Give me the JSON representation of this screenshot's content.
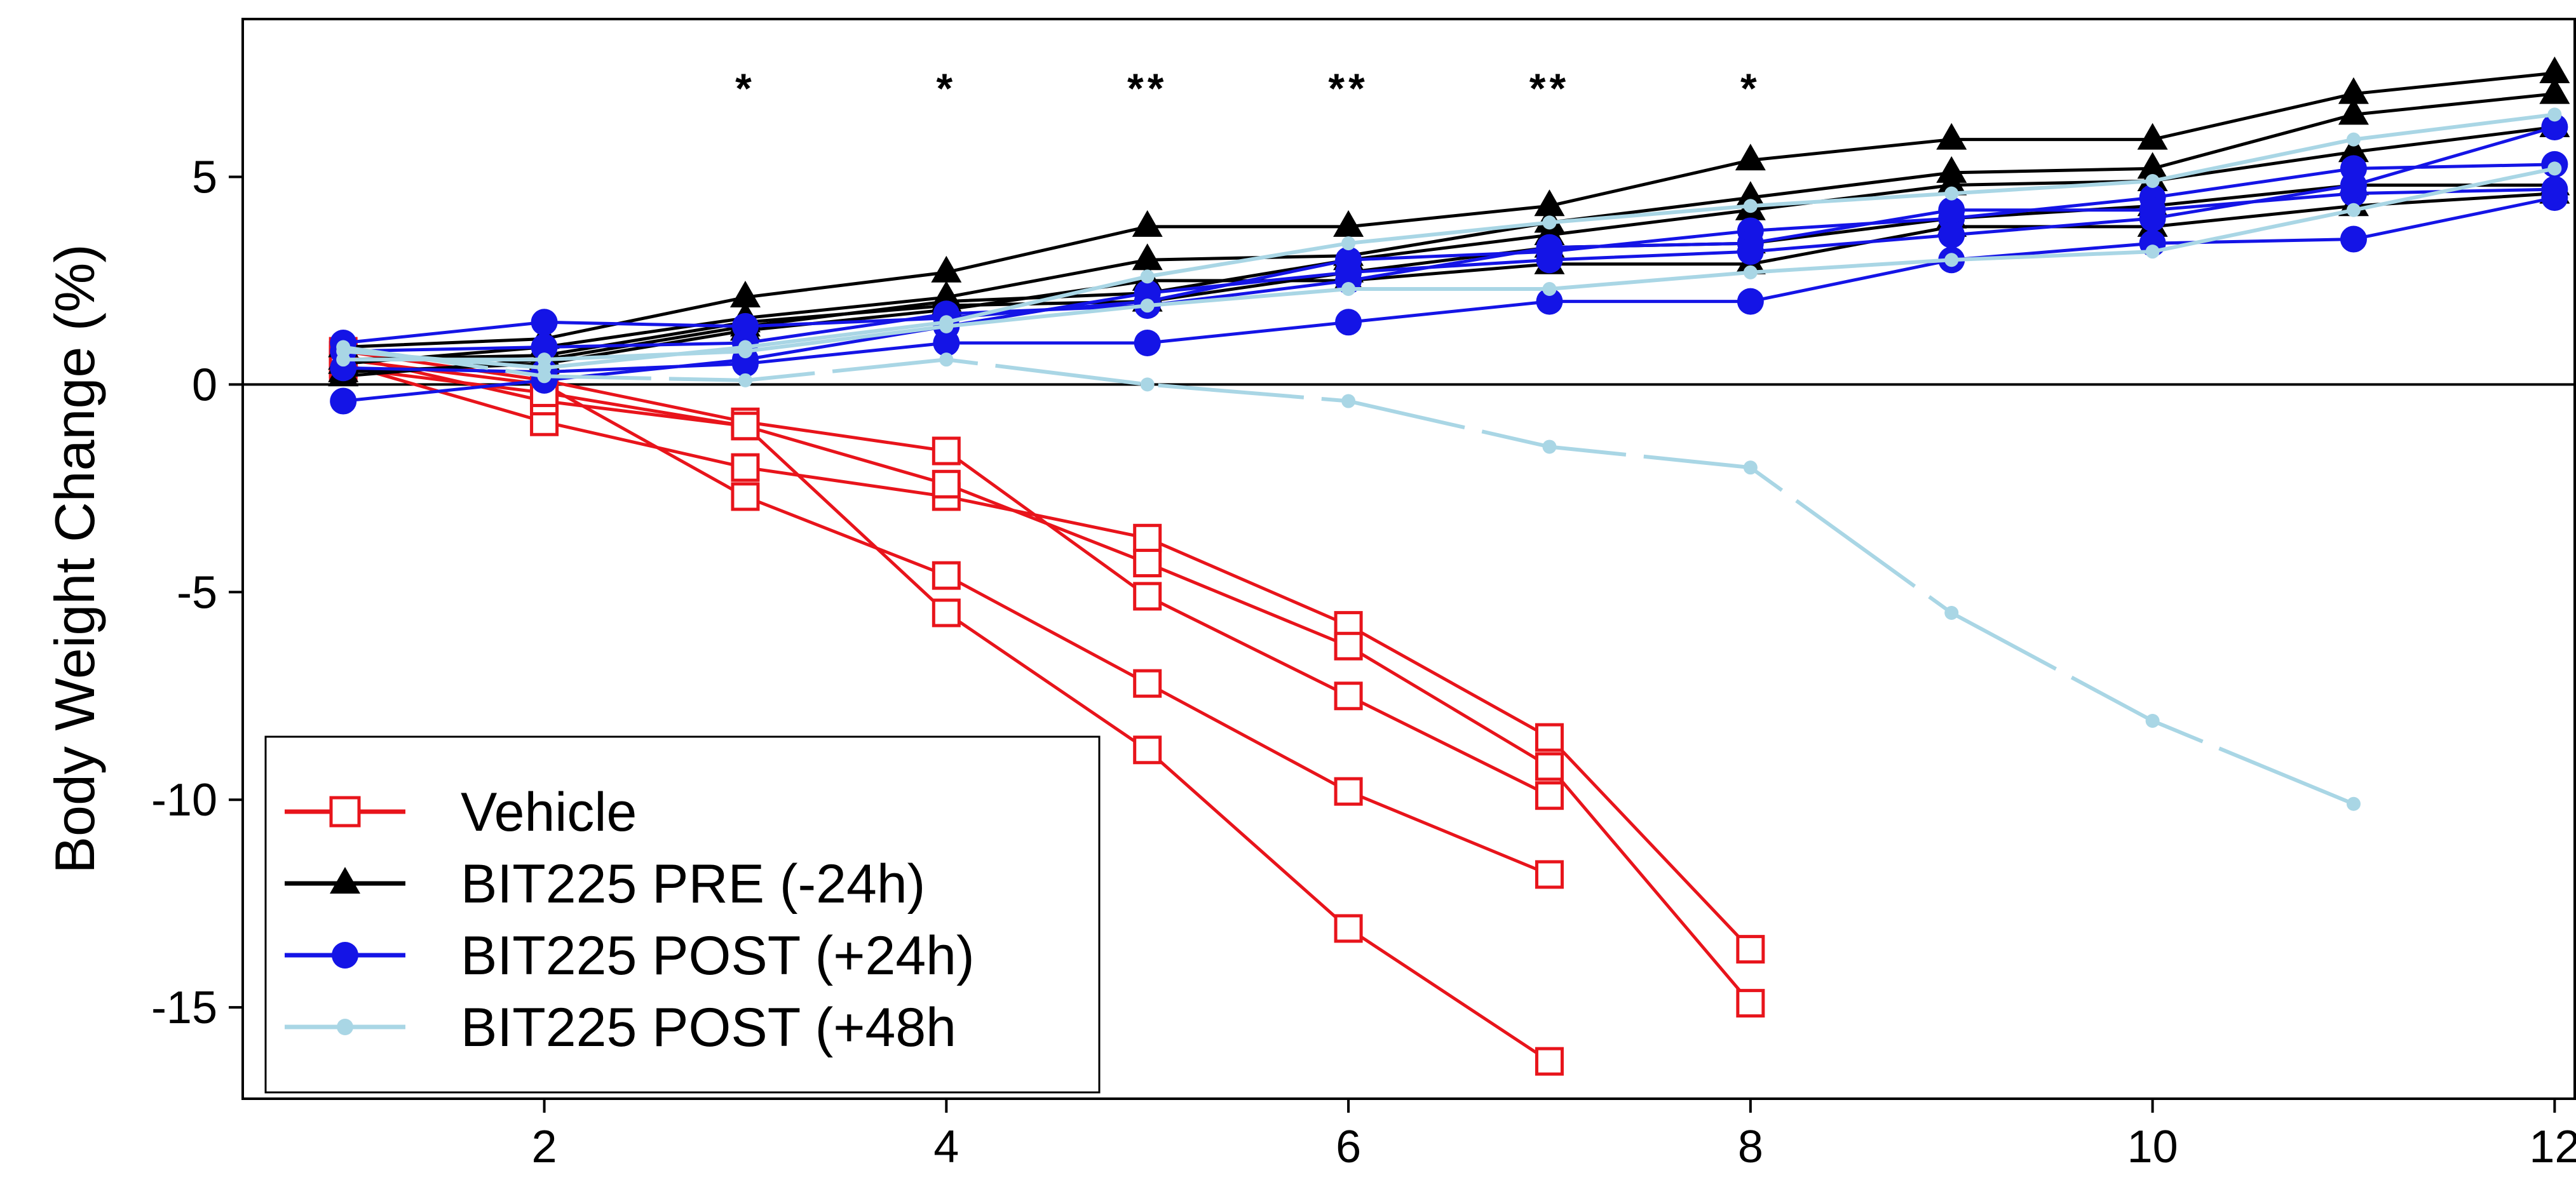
{
  "chart_data": {
    "type": "line",
    "title": "",
    "xlabel": "",
    "ylabel": "Body Weight Change (%)",
    "xlim": [
      0.5,
      12.1
    ],
    "ylim": [
      -17.2,
      8.8
    ],
    "x_ticks": [
      2,
      4,
      6,
      8,
      10,
      12
    ],
    "y_ticks": [
      5,
      0,
      -5,
      -10,
      -15
    ],
    "reference_line_y": 0,
    "grid": false,
    "legend_position": "bottom-left",
    "significance_marks": [
      {
        "x": 3,
        "label": "*"
      },
      {
        "x": 4,
        "label": "*"
      },
      {
        "x": 5,
        "label": "**"
      },
      {
        "x": 6,
        "label": "**"
      },
      {
        "x": 7,
        "label": "**"
      },
      {
        "x": 8,
        "label": "*"
      }
    ],
    "series": [
      {
        "name": "Vehicle",
        "color": "#e8141b",
        "marker": "open-square",
        "dashed": false,
        "lines": [
          {
            "x": [
              1,
              2,
              3,
              4,
              5,
              6,
              7,
              8
            ],
            "y": [
              0.5,
              -0.9,
              -2.0,
              -2.7,
              -3.7,
              -5.8,
              -8.5,
              -13.6
            ]
          },
          {
            "x": [
              1,
              2,
              3,
              4,
              5,
              6,
              7,
              8
            ],
            "y": [
              0.7,
              -0.4,
              -1.0,
              -2.4,
              -4.3,
              -6.3,
              -9.2,
              -14.9
            ]
          },
          {
            "x": [
              1,
              2,
              3,
              4,
              5,
              6,
              7
            ],
            "y": [
              0.8,
              0.1,
              -0.9,
              -1.6,
              -5.1,
              -7.5,
              -9.9
            ]
          },
          {
            "x": [
              1,
              2,
              3,
              4,
              5,
              6,
              7
            ],
            "y": [
              0.6,
              0.0,
              -2.7,
              -4.6,
              -7.2,
              -9.8,
              -11.8
            ]
          },
          {
            "x": [
              1,
              2,
              3,
              4,
              5,
              6,
              7
            ],
            "y": [
              0.4,
              -0.2,
              -1.0,
              -5.5,
              -8.8,
              -13.1,
              -16.3
            ]
          }
        ]
      },
      {
        "name": "BIT225 PRE (-24h)",
        "color": "#000000",
        "marker": "filled-triangle",
        "dashed": false,
        "lines": [
          {
            "x": [
              1,
              2,
              3,
              4,
              5,
              6,
              7,
              8,
              9,
              10,
              11,
              12
            ],
            "y": [
              0.9,
              1.1,
              2.1,
              2.7,
              3.8,
              3.8,
              4.3,
              5.4,
              5.9,
              5.9,
              7.0,
              7.5
            ]
          },
          {
            "x": [
              1,
              2,
              3,
              4,
              5,
              6,
              7,
              8,
              9,
              10,
              11,
              12
            ],
            "y": [
              0.5,
              0.9,
              1.6,
              2.1,
              3.0,
              3.1,
              3.9,
              4.5,
              5.1,
              5.2,
              6.5,
              7.0
            ]
          },
          {
            "x": [
              1,
              2,
              3,
              4,
              5,
              6,
              7,
              8,
              9,
              10,
              11,
              12
            ],
            "y": [
              0.2,
              0.6,
              1.4,
              2.0,
              2.2,
              3.0,
              3.6,
              4.2,
              4.8,
              4.9,
              5.6,
              6.2
            ]
          },
          {
            "x": [
              1,
              2,
              3,
              4,
              5,
              6,
              7,
              8,
              9,
              10,
              11,
              12
            ],
            "y": [
              0.6,
              0.7,
              1.5,
              1.9,
              2.0,
              2.7,
              3.3,
              3.4,
              4.0,
              4.3,
              4.8,
              4.8
            ]
          },
          {
            "x": [
              1,
              2,
              3,
              4,
              5,
              6,
              7,
              8,
              9,
              10,
              11,
              12
            ],
            "y": [
              0.3,
              0.5,
              1.3,
              1.8,
              2.5,
              2.5,
              2.9,
              2.9,
              3.8,
              3.8,
              4.3,
              4.6
            ]
          }
        ]
      },
      {
        "name": "BIT225 POST (+24h)",
        "color": "#1414e6",
        "marker": "filled-circle",
        "dashed": false,
        "lines": [
          {
            "x": [
              1,
              2,
              3,
              4,
              5,
              6,
              7,
              8,
              9,
              10,
              11,
              12
            ],
            "y": [
              1.0,
              1.5,
              1.4,
              1.6,
              2.0,
              3.0,
              3.2,
              3.7,
              4.0,
              4.5,
              5.2,
              5.3
            ]
          },
          {
            "x": [
              1,
              2,
              3,
              4,
              5,
              6,
              7,
              8,
              9,
              10,
              11,
              12
            ],
            "y": [
              0.8,
              0.9,
              1.0,
              1.7,
              1.9,
              2.5,
              3.3,
              3.4,
              4.2,
              4.2,
              4.6,
              4.7
            ]
          },
          {
            "x": [
              1,
              2,
              3,
              4,
              5,
              6,
              7,
              8,
              9,
              10,
              11,
              12
            ],
            "y": [
              0.4,
              0.3,
              0.5,
              1.0,
              1.0,
              1.5,
              2.0,
              2.0,
              3.0,
              3.4,
              3.5,
              4.5
            ]
          },
          {
            "x": [
              1,
              2,
              3,
              4,
              5,
              6,
              7,
              8,
              9,
              10,
              11,
              12
            ],
            "y": [
              -0.4,
              0.1,
              0.6,
              1.4,
              2.2,
              2.7,
              3.0,
              3.2,
              3.6,
              4.0,
              4.8,
              6.2
            ]
          }
        ]
      },
      {
        "name": "BIT225 POST (+48h",
        "color": "#a9d6e5",
        "marker": "small-dot",
        "dashed": false,
        "lines": [
          {
            "x": [
              1,
              2,
              3,
              4,
              5,
              6,
              7,
              8,
              9,
              10,
              11,
              12
            ],
            "y": [
              0.8,
              0.4,
              0.9,
              1.5,
              2.6,
              3.4,
              3.9,
              4.3,
              4.6,
              4.9,
              5.9,
              6.5
            ]
          },
          {
            "x": [
              1,
              2,
              3,
              4,
              5,
              6,
              7,
              8,
              9,
              10,
              11,
              12
            ],
            "y": [
              0.6,
              0.6,
              0.8,
              1.4,
              1.9,
              2.3,
              2.3,
              2.7,
              3.0,
              3.2,
              4.2,
              5.2
            ]
          }
        ]
      },
      {
        "name": "",
        "color": "#a9d6e5",
        "marker": "small-dot",
        "dashed": true,
        "lines": [
          {
            "x": [
              1,
              2,
              3,
              4,
              5,
              6,
              7,
              8,
              9,
              10,
              11
            ],
            "y": [
              0.9,
              0.2,
              0.1,
              0.6,
              0.0,
              -0.4,
              -1.5,
              -2.0,
              -5.5,
              -8.1,
              -10.1
            ]
          }
        ]
      }
    ]
  }
}
